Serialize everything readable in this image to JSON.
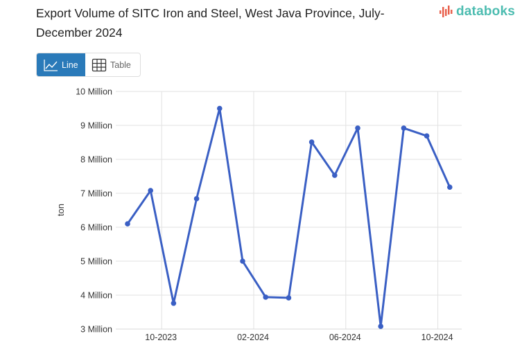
{
  "header": {
    "title": "Export Volume of SITC Iron and Steel, West Java Province, July-December 2024",
    "logo_text": "databoks"
  },
  "toggle": {
    "line_label": "Line",
    "table_label": "Table",
    "active": "line"
  },
  "colors": {
    "series": "#3a5fc4",
    "toggle_active": "#2a7ab9",
    "logo_teal": "#4cbcb0",
    "logo_red": "#e8604c",
    "grid": "#e2e2e2"
  },
  "chart_data": {
    "type": "line",
    "title": "Export Volume of SITC Iron and Steel, West Java Province, July-December 2024",
    "xlabel": "",
    "ylabel": "ton",
    "ylim": [
      3000000,
      10000000
    ],
    "y_ticks": [
      "3 Million",
      "4 Million",
      "5 Million",
      "6 Million",
      "7 Million",
      "8 Million",
      "9 Million",
      "10 Million"
    ],
    "x_ticks": [
      "10-2023",
      "02-2024",
      "06-2024",
      "10-2024"
    ],
    "grid": true,
    "legend": null,
    "x": [
      "09-2023",
      "10-2023",
      "11-2023",
      "12-2023",
      "01-2024",
      "02-2024",
      "03-2024",
      "04-2024",
      "05-2024",
      "06-2024",
      "07-2024",
      "08-2024",
      "09-2024",
      "10-2024",
      "11-2024"
    ],
    "series": [
      {
        "name": "Export Volume",
        "values": [
          6100000,
          7080000,
          3760000,
          6840000,
          9500000,
          5000000,
          3940000,
          3920000,
          8510000,
          7530000,
          8920000,
          3080000,
          8920000,
          8690000,
          7180000
        ]
      }
    ]
  }
}
